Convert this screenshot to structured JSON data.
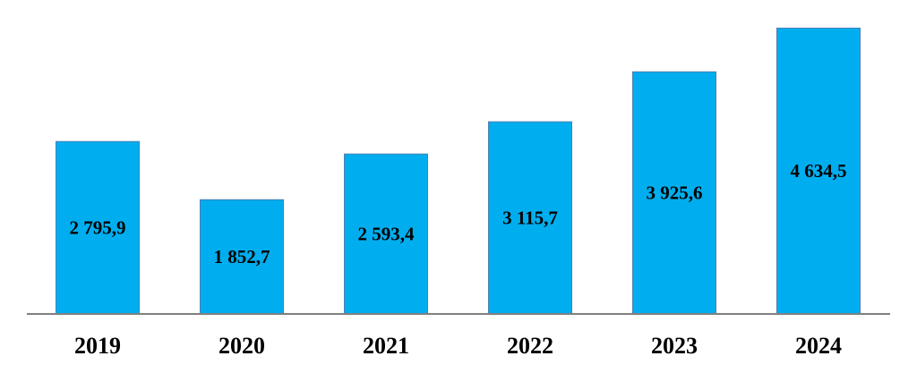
{
  "chart_data": {
    "type": "bar",
    "categories": [
      "2019",
      "2020",
      "2021",
      "2022",
      "2023",
      "2024"
    ],
    "values": [
      2795.9,
      1852.7,
      2593.4,
      3115.7,
      3925.6,
      4634.5
    ],
    "value_labels": [
      "2 795,9",
      "1 852,7",
      "2 593,4",
      "3 115,7",
      "3 925,6",
      "4 634,5"
    ],
    "title": "",
    "xlabel": "",
    "ylabel": "",
    "ylim": [
      0,
      4800
    ],
    "grid": false,
    "legend": "none",
    "bar_color": "#00AEEF",
    "label_color": "#000000",
    "axis_color": "#808080"
  }
}
